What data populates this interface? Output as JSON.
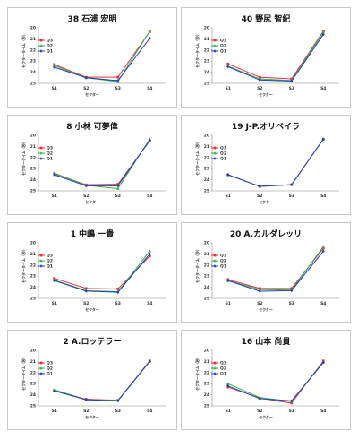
{
  "chart_data": [
    {
      "type": "line",
      "title": "38 石浦 宏明",
      "xlabel": "セクター",
      "ylabel": "セクタータイム（秒）",
      "categories": [
        "S1",
        "S2",
        "S3",
        "S4"
      ],
      "yticks": [
        "20",
        "21",
        "22",
        "23",
        "24",
        "25"
      ],
      "ylim": [
        20,
        25
      ],
      "y_inverted": true,
      "legend": "top-left",
      "series": [
        {
          "name": "Q3",
          "color": "#e8313c",
          "marker": "square",
          "values": [
            23.3,
            24.45,
            24.45,
            20.35
          ]
        },
        {
          "name": "Q2",
          "color": "#2fb04a",
          "marker": "triangle",
          "values": [
            23.4,
            24.5,
            24.85,
            20.3
          ]
        },
        {
          "name": "Q1",
          "color": "#1f3fbf",
          "marker": "diamond",
          "values": [
            23.55,
            24.5,
            24.75,
            20.95
          ]
        }
      ]
    },
    {
      "type": "line",
      "title": "40 野尻 智紀",
      "xlabel": "セクター",
      "ylabel": "セクタータイム（秒）",
      "categories": [
        "S1",
        "S2",
        "S3",
        "S4"
      ],
      "yticks": [
        "20",
        "21",
        "22",
        "23",
        "24",
        "25"
      ],
      "ylim": [
        20,
        25
      ],
      "y_inverted": true,
      "legend": "top-left",
      "series": [
        {
          "name": "Q3",
          "color": "#e8313c",
          "marker": "square",
          "values": [
            23.25,
            24.45,
            24.6,
            20.3
          ]
        },
        {
          "name": "Q2",
          "color": "#2fb04a",
          "marker": "triangle",
          "values": [
            23.45,
            24.6,
            24.75,
            20.4
          ]
        },
        {
          "name": "Q1",
          "color": "#1f3fbf",
          "marker": "diamond",
          "values": [
            23.5,
            24.7,
            24.8,
            20.6
          ]
        }
      ]
    },
    {
      "type": "line",
      "title": "8 小林 可夢偉",
      "xlabel": "セクター",
      "ylabel": "セクタータイム（秒）",
      "categories": [
        "S1",
        "S2",
        "S3",
        "S4"
      ],
      "yticks": [
        "20",
        "21",
        "22",
        "23",
        "24",
        "25"
      ],
      "ylim": [
        20,
        25
      ],
      "y_inverted": true,
      "legend": "top-left",
      "series": [
        {
          "name": "Q3",
          "color": "#e8313c",
          "marker": "square",
          "values": [
            23.45,
            24.45,
            24.4,
            20.5
          ]
        },
        {
          "name": "Q2",
          "color": "#2fb04a",
          "marker": "triangle",
          "values": [
            23.4,
            24.5,
            24.8,
            20.35
          ]
        },
        {
          "name": "Q1",
          "color": "#1f3fbf",
          "marker": "diamond",
          "values": [
            23.55,
            24.55,
            24.55,
            20.45
          ]
        }
      ]
    },
    {
      "type": "line",
      "title": "19 J-P.オリベイラ",
      "xlabel": "セクター",
      "ylabel": "セクタータイム（秒）",
      "categories": [
        "S1",
        "S2",
        "S3",
        "S4"
      ],
      "yticks": [
        "20",
        "21",
        "22",
        "23",
        "24",
        "25"
      ],
      "ylim": [
        20,
        25
      ],
      "y_inverted": true,
      "legend": "top-left",
      "series": [
        {
          "name": "Q3",
          "color": "#e8313c",
          "marker": "square",
          "values": [
            23.55,
            24.6,
            24.45,
            20.35
          ]
        },
        {
          "name": "Q2",
          "color": "#2fb04a",
          "marker": "triangle",
          "values": [
            23.55,
            24.6,
            24.45,
            20.35
          ]
        },
        {
          "name": "Q1",
          "color": "#1f3fbf",
          "marker": "diamond",
          "values": [
            23.55,
            24.6,
            24.45,
            20.35
          ]
        }
      ]
    },
    {
      "type": "line",
      "title": "1 中嶋 一貴",
      "xlabel": "セクター",
      "ylabel": "セクタータイム（秒）",
      "categories": [
        "S1",
        "S2",
        "S3",
        "S4"
      ],
      "yticks": [
        "20",
        "21",
        "22",
        "23",
        "24",
        "25"
      ],
      "ylim": [
        20,
        25
      ],
      "y_inverted": true,
      "legend": "top-left",
      "series": [
        {
          "name": "Q3",
          "color": "#e8313c",
          "marker": "square",
          "values": [
            23.2,
            24.1,
            24.15,
            21.2
          ]
        },
        {
          "name": "Q2",
          "color": "#2fb04a",
          "marker": "triangle",
          "values": [
            23.35,
            24.3,
            24.4,
            20.75
          ]
        },
        {
          "name": "Q1",
          "color": "#1f3fbf",
          "marker": "diamond",
          "values": [
            23.4,
            24.35,
            24.45,
            21.0
          ]
        }
      ]
    },
    {
      "type": "line",
      "title": "20 A.カルダレッリ",
      "xlabel": "セクター",
      "ylabel": "セクタータイム（秒）",
      "categories": [
        "S1",
        "S2",
        "S3",
        "S4"
      ],
      "yticks": [
        "20",
        "21",
        "22",
        "23",
        "24",
        "25"
      ],
      "ylim": [
        20,
        25
      ],
      "y_inverted": true,
      "legend": "top-left",
      "series": [
        {
          "name": "Q3",
          "color": "#e8313c",
          "marker": "square",
          "values": [
            23.3,
            24.1,
            24.1,
            20.5
          ]
        },
        {
          "name": "Q2",
          "color": "#2fb04a",
          "marker": "triangle",
          "values": [
            23.4,
            24.2,
            24.25,
            20.35
          ]
        },
        {
          "name": "Q1",
          "color": "#1f3fbf",
          "marker": "diamond",
          "values": [
            23.4,
            24.35,
            24.3,
            20.75
          ]
        }
      ]
    },
    {
      "type": "line",
      "title": "2 A.ロッテラー",
      "xlabel": "セクター",
      "ylabel": "セクタータイム（秒）",
      "categories": [
        "S1",
        "S2",
        "S3",
        "S4"
      ],
      "yticks": [
        "20",
        "21",
        "22",
        "23",
        "24",
        "25"
      ],
      "ylim": [
        20,
        25
      ],
      "y_inverted": true,
      "legend": "top-left",
      "series": [
        {
          "name": "Q3",
          "color": "#e8313c",
          "marker": "square",
          "values": [
            23.6,
            24.4,
            24.5,
            20.95
          ]
        },
        {
          "name": "Q2",
          "color": "#2fb04a",
          "marker": "triangle",
          "values": [
            23.55,
            24.45,
            24.5,
            21.0
          ]
        },
        {
          "name": "Q1",
          "color": "#1f3fbf",
          "marker": "diamond",
          "values": [
            23.65,
            24.45,
            24.55,
            21.0
          ]
        }
      ]
    },
    {
      "type": "line",
      "title": "16 山本 尚貴",
      "xlabel": "セクター",
      "ylabel": "セクタータイム（秒）",
      "categories": [
        "S1",
        "S2",
        "S3",
        "S4"
      ],
      "yticks": [
        "20",
        "21",
        "22",
        "23",
        "24",
        "25"
      ],
      "ylim": [
        20,
        25
      ],
      "y_inverted": true,
      "legend": "top-left",
      "series": [
        {
          "name": "Q3",
          "color": "#e8313c",
          "marker": "square",
          "values": [
            23.3,
            24.3,
            24.75,
            20.95
          ]
        },
        {
          "name": "Q2",
          "color": "#2fb04a",
          "marker": "triangle",
          "values": [
            23.0,
            24.25,
            24.6,
            21.05
          ]
        },
        {
          "name": "Q1",
          "color": "#1f3fbf",
          "marker": "diamond",
          "values": [
            23.2,
            24.35,
            24.55,
            21.1
          ]
        }
      ]
    }
  ]
}
